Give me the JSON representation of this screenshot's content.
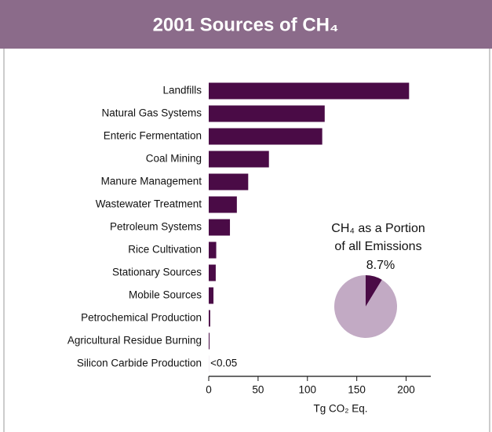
{
  "chart_data": [
    {
      "type": "bar",
      "orientation": "horizontal",
      "title": "2001 Sources of CH₄",
      "categories": [
        "Landfills",
        "Natural Gas Systems",
        "Enteric Fermentation",
        "Coal Mining",
        "Manure Management",
        "Wastewater Treatment",
        "Petroleum Systems",
        "Rice Cultivation",
        "Stationary Sources",
        "Mobile Sources",
        "Petrochemical Production",
        "Agricultural Residue Burning",
        "Silicon Carbide Production"
      ],
      "values": [
        203,
        117.5,
        115,
        61,
        40,
        28.5,
        21.5,
        7.6,
        7.1,
        4.8,
        1.5,
        0.8,
        0.05
      ],
      "value_labels": [
        null,
        null,
        null,
        null,
        null,
        null,
        null,
        null,
        null,
        null,
        null,
        null,
        "<0.05"
      ],
      "color": "#4a0b46",
      "xlim": [
        0,
        225
      ],
      "xticks": [
        0,
        50,
        100,
        150,
        200
      ],
      "xlabel": "Tg CO₂ Eq."
    },
    {
      "type": "pie",
      "title": [
        "CH₄ as a Portion",
        "of all Emissions"
      ],
      "values": [
        8.7,
        91.3
      ],
      "value_labels": [
        "8.7%",
        null
      ],
      "colors": [
        "#4a0b46",
        "#c2aac4"
      ]
    }
  ]
}
